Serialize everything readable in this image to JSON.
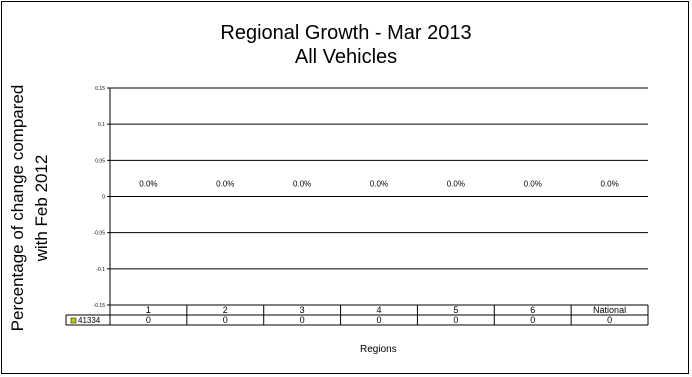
{
  "chart_data": {
    "type": "bar",
    "title": "Regional Growth - Mar 2013",
    "subtitle": "All Vehicles",
    "ylabel_line1": "Percentage of change compared",
    "ylabel_line2": "with Feb 2012",
    "xlabel": "Regions",
    "categories": [
      "1",
      "2",
      "3",
      "4",
      "5",
      "6",
      "National"
    ],
    "y_ticks": [
      "0.15",
      "0.1",
      "0.05",
      "0",
      "-0.05",
      "-0.1",
      "-0.15"
    ],
    "ylim": [
      -0.15,
      0.15
    ],
    "grid": true,
    "series": [
      {
        "name": "41334",
        "color": "#c8c800",
        "values": [
          0,
          0,
          0,
          0,
          0,
          0,
          0
        ],
        "value_labels": [
          "0.0%",
          "0.0%",
          "0.0%",
          "0.0%",
          "0.0%",
          "0.0%",
          "0.0%"
        ],
        "table_values": [
          "0",
          "0",
          "0",
          "0",
          "0",
          "0",
          "0"
        ]
      }
    ]
  }
}
